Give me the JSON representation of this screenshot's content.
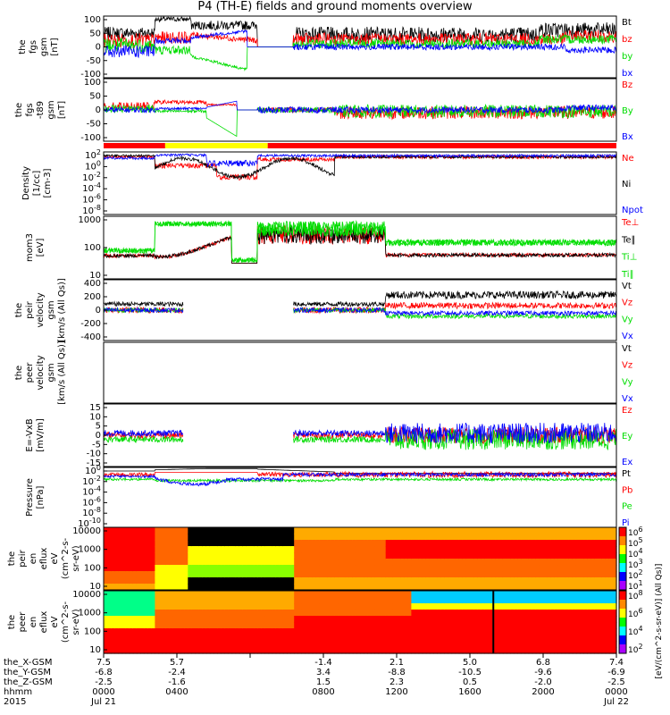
{
  "title": "P4 (TH-E) fields and ground moments overview",
  "colors": {
    "black": "#000000",
    "red": "#ff0000",
    "green": "#00dd00",
    "blue": "#0000ff",
    "yellow": "#ffff00",
    "frame": "#000000"
  },
  "chart_data": [
    {
      "id": "p1",
      "type": "line",
      "ylabel": [
        "the",
        "fgs",
        "gsm",
        "[nT]"
      ],
      "ylim": [
        -100,
        100
      ],
      "ticks": [
        "100",
        "50",
        "0",
        "-50",
        "-100"
      ],
      "series": [
        {
          "name": "Bt",
          "color": "black"
        },
        {
          "name": "bz",
          "color": "red"
        },
        {
          "name": "by",
          "color": "green"
        },
        {
          "name": "bx",
          "color": "blue"
        }
      ]
    },
    {
      "id": "p2",
      "type": "line",
      "ylabel": [
        "the",
        "fgs",
        "-t89",
        "gsm",
        "[nT]"
      ],
      "ylim": [
        -120,
        120
      ],
      "ticks": [
        "100",
        "50",
        "0",
        "-50",
        "-100"
      ],
      "series": [
        {
          "name": "Bz",
          "color": "red"
        },
        {
          "name": "By",
          "color": "green"
        },
        {
          "name": "Bx",
          "color": "blue"
        }
      ]
    },
    {
      "id": "p3",
      "type": "line",
      "ylabel": [
        "Density",
        "[1/cc]",
        "[cm-3]"
      ],
      "yscale": "log",
      "ticks": [
        "10^2",
        "10^0",
        "10^-2",
        "10^-4",
        "10^-6",
        "10^-8"
      ],
      "series": [
        {
          "name": "Ne",
          "color": "red"
        },
        {
          "name": "Ni",
          "color": "black"
        },
        {
          "name": "Npot",
          "color": "blue"
        }
      ]
    },
    {
      "id": "p4",
      "type": "line",
      "ylabel": [
        "mom3",
        "[eV]"
      ],
      "yscale": "log",
      "ticks": [
        "1000",
        "100",
        "10"
      ],
      "series": [
        {
          "name": "Te⊥",
          "color": "red"
        },
        {
          "name": "Te∥",
          "color": "black"
        },
        {
          "name": "Ti⊥",
          "color": "green"
        },
        {
          "name": "Ti∥",
          "color": "green"
        }
      ]
    },
    {
      "id": "p5",
      "type": "line",
      "ylabel": [
        "the",
        "peir",
        "velocity",
        "gsm",
        "[km/s (All Qs)]"
      ],
      "ylim": [
        -400,
        400
      ],
      "ticks": [
        "400",
        "200",
        "0",
        "-200",
        "-400"
      ],
      "series": [
        {
          "name": "Vt",
          "color": "black"
        },
        {
          "name": "Vz",
          "color": "red"
        },
        {
          "name": "Vy",
          "color": "green"
        },
        {
          "name": "Vx",
          "color": "blue"
        }
      ]
    },
    {
      "id": "p6",
      "type": "line",
      "ylabel": [
        "the",
        "peer",
        "velocity",
        "gsm",
        "[km/s (All Qs)]"
      ],
      "ticks": [],
      "series": [
        {
          "name": "Vt",
          "color": "black"
        },
        {
          "name": "Vz",
          "color": "red"
        },
        {
          "name": "Vy",
          "color": "green"
        },
        {
          "name": "Vx",
          "color": "blue"
        }
      ]
    },
    {
      "id": "p7",
      "type": "line",
      "ylabel": [
        "E=-VxB",
        "[mV/m]"
      ],
      "ylim": [
        -15,
        15
      ],
      "ticks": [
        "15",
        "10",
        "5",
        "0",
        "-5",
        "-10",
        "-15"
      ],
      "series": [
        {
          "name": "Ez",
          "color": "red"
        },
        {
          "name": "Ey",
          "color": "green"
        },
        {
          "name": "Ex",
          "color": "blue"
        }
      ]
    },
    {
      "id": "p8",
      "type": "line",
      "ylabel": [
        "Pressure",
        "[nPa]"
      ],
      "yscale": "log",
      "ticks": [
        "10^0",
        "10^-2",
        "10^-4",
        "10^-6",
        "10^-8",
        "10^-10"
      ],
      "series": [
        {
          "name": "Pt",
          "color": "black"
        },
        {
          "name": "Pb",
          "color": "red"
        },
        {
          "name": "Pe",
          "color": "green"
        },
        {
          "name": "Pi",
          "color": "blue"
        }
      ]
    },
    {
      "id": "p9",
      "type": "heatmap",
      "ylabel": [
        "the",
        "peir",
        "en",
        "eflux",
        "eV",
        "(cm^2-s-",
        "sr-eV)"
      ],
      "yscale": "log",
      "ticks": [
        "10000",
        "1000",
        "100",
        "10"
      ]
    },
    {
      "id": "p10",
      "type": "heatmap",
      "ylabel": [
        "the",
        "peer",
        "en",
        "eflux",
        "eV",
        "(cm^2-s-",
        "sr-eV)"
      ],
      "yscale": "log",
      "ticks": [
        "10000",
        "1000",
        "100",
        "10"
      ]
    }
  ],
  "colorbar": {
    "ticks": [
      "10^6",
      "10^5",
      "10^4",
      "10^3",
      "10^2",
      "10^1"
    ],
    "ticks2": [
      "10^8",
      "10^6",
      "10^4",
      "10^2"
    ],
    "label": "[eV/(cm^2-s-sr-eV)] (All Qs)]"
  },
  "xaxis": {
    "row_labels": [
      "the_X-GSM",
      "the_Y-GSM",
      "the_Z-GSM",
      "hhmm",
      "2015"
    ],
    "columns": [
      {
        "v": [
          "7.5",
          "-6.8",
          "-2.5",
          "0000",
          "Jul 21"
        ]
      },
      {
        "v": [
          "5.7",
          "-2.4",
          "-1.6",
          "0400",
          ""
        ]
      },
      {
        "v": [
          "",
          "",
          "",
          "",
          ""
        ]
      },
      {
        "v": [
          "-1.4",
          "3.4",
          "1.5",
          "0800",
          ""
        ]
      },
      {
        "v": [
          "2.1",
          "-8.8",
          "2.3",
          "1200",
          ""
        ]
      },
      {
        "v": [
          "5.0",
          "-10.5",
          "0.5",
          "1600",
          ""
        ]
      },
      {
        "v": [
          "6.8",
          "-9.6",
          "-2.0",
          "2000",
          ""
        ]
      },
      {
        "v": [
          "7.4",
          "-6.9",
          "-2.5",
          "0000",
          "Jul 22"
        ]
      }
    ]
  }
}
